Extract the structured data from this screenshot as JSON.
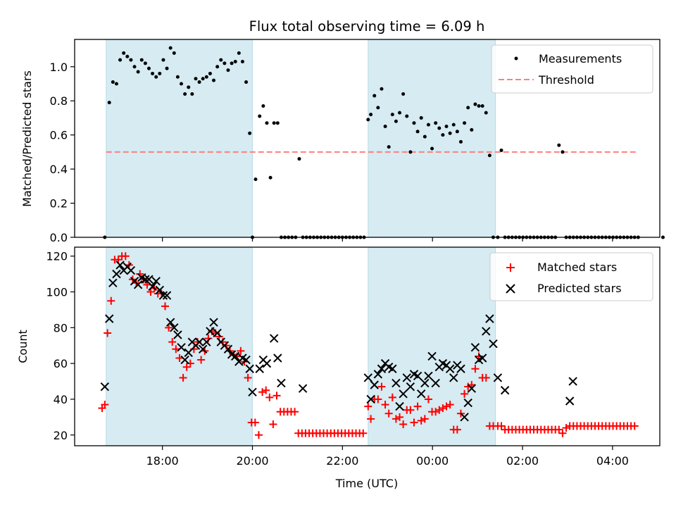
{
  "chart_data": [
    {
      "type": "scatter",
      "title": "Flux total observing time = 6.09 h",
      "xlabel": "",
      "ylabel": "Matched/Predicted stars",
      "xlim": [
        16.05,
        29.05
      ],
      "ylim": [
        0.0,
        1.16
      ],
      "yticks": [
        0.0,
        0.2,
        0.4,
        0.6,
        0.8,
        1.0
      ],
      "ytick_labels": [
        "0.0",
        "0.2",
        "0.4",
        "0.6",
        "0.8",
        "1.0"
      ],
      "grid": false,
      "legend": "top-right",
      "legend_entries": [
        "Measurements",
        "Threshold"
      ],
      "shaded_regions": [
        [
          16.75,
          20.0
        ],
        [
          22.57,
          25.4
        ]
      ],
      "threshold": {
        "name": "Threshold",
        "value": 0.5,
        "x_range": [
          16.75,
          28.55
        ],
        "color": "#ff7f7f"
      },
      "series": [
        {
          "name": "Measurements",
          "marker": "dot",
          "color": "#000000",
          "x": [
            16.72,
            16.82,
            16.9,
            16.98,
            17.06,
            17.14,
            17.22,
            17.3,
            17.38,
            17.46,
            17.54,
            17.62,
            17.7,
            17.78,
            17.86,
            17.94,
            18.02,
            18.1,
            18.18,
            18.26,
            18.34,
            18.42,
            18.5,
            18.58,
            18.66,
            18.74,
            18.82,
            18.9,
            18.98,
            19.06,
            19.14,
            19.22,
            19.3,
            19.38,
            19.46,
            19.54,
            19.62,
            19.7,
            19.78,
            19.86,
            19.94,
            20.0,
            20.07,
            20.16,
            20.24,
            20.32,
            20.4,
            20.48,
            20.56,
            20.64,
            20.72,
            20.8,
            20.88,
            20.96,
            21.04,
            21.12,
            21.2,
            21.28,
            21.36,
            21.44,
            21.52,
            21.6,
            21.68,
            21.76,
            21.84,
            21.92,
            22.0,
            22.08,
            22.16,
            22.24,
            22.32,
            22.4,
            22.48,
            22.57,
            22.63,
            22.71,
            22.79,
            22.87,
            22.95,
            23.03,
            23.11,
            23.19,
            23.27,
            23.35,
            23.43,
            23.51,
            23.59,
            23.67,
            23.75,
            23.83,
            23.91,
            23.99,
            24.07,
            24.15,
            24.23,
            24.31,
            24.39,
            24.47,
            24.55,
            24.63,
            24.71,
            24.79,
            24.87,
            24.95,
            25.03,
            25.11,
            25.19,
            25.27,
            25.35,
            25.45,
            25.53,
            25.61,
            25.69,
            25.77,
            25.85,
            25.93,
            26.01,
            26.09,
            26.17,
            26.25,
            26.33,
            26.41,
            26.49,
            26.57,
            26.65,
            26.73,
            26.81,
            26.89,
            26.97,
            27.05,
            27.13,
            27.21,
            27.29,
            27.37,
            27.45,
            27.53,
            27.61,
            27.69,
            27.77,
            27.85,
            27.93,
            28.01,
            28.09,
            28.17,
            28.25,
            28.33,
            28.41,
            28.49,
            28.57,
            29.12
          ],
          "y": [
            0.0,
            0.79,
            0.91,
            0.9,
            1.04,
            1.08,
            1.06,
            1.04,
            1.0,
            0.97,
            1.04,
            1.02,
            0.99,
            0.96,
            0.94,
            0.96,
            1.04,
            0.99,
            1.11,
            1.08,
            0.94,
            0.9,
            0.84,
            0.88,
            0.84,
            0.93,
            0.91,
            0.93,
            0.94,
            0.96,
            0.92,
            1.0,
            1.04,
            1.02,
            0.98,
            1.02,
            1.03,
            1.08,
            1.03,
            0.91,
            0.61,
            0.0,
            0.34,
            0.71,
            0.77,
            0.67,
            0.35,
            0.67,
            0.67,
            0.0,
            0.0,
            0.0,
            0.0,
            0.0,
            0.46,
            0.0,
            0.0,
            0.0,
            0.0,
            0.0,
            0.0,
            0.0,
            0.0,
            0.0,
            0.0,
            0.0,
            0.0,
            0.0,
            0.0,
            0.0,
            0.0,
            0.0,
            0.0,
            0.69,
            0.72,
            0.83,
            0.76,
            0.87,
            0.65,
            0.53,
            0.72,
            0.68,
            0.73,
            0.84,
            0.71,
            0.5,
            0.67,
            0.62,
            0.7,
            0.59,
            0.66,
            0.52,
            0.67,
            0.64,
            0.6,
            0.65,
            0.61,
            0.66,
            0.62,
            0.56,
            0.67,
            0.76,
            0.63,
            0.78,
            0.77,
            0.77,
            0.73,
            0.48,
            0.0,
            0.0,
            0.51,
            0.0,
            0.0,
            0.0,
            0.0,
            0.0,
            0.0,
            0.0,
            0.0,
            0.0,
            0.0,
            0.0,
            0.0,
            0.0,
            0.0,
            0.0,
            0.54,
            0.5,
            0.0,
            0.0,
            0.0,
            0.0,
            0.0,
            0.0,
            0.0,
            0.0,
            0.0,
            0.0,
            0.0,
            0.0,
            0.0,
            0.0,
            0.0,
            0.0,
            0.0,
            0.0,
            0.0,
            0.0,
            0.0,
            0.0
          ]
        }
      ]
    },
    {
      "type": "scatter",
      "title": "",
      "xlabel": "Time (UTC)",
      "ylabel": "Count",
      "xlim": [
        16.05,
        29.05
      ],
      "ylim": [
        14.0,
        125.0
      ],
      "yticks": [
        20,
        40,
        60,
        80,
        100,
        120
      ],
      "ytick_labels": [
        "20",
        "40",
        "60",
        "80",
        "100",
        "120"
      ],
      "xticks": [
        18,
        20,
        22,
        24,
        26,
        28
      ],
      "xtick_labels": [
        "18:00",
        "20:00",
        "22:00",
        "00:00",
        "02:00",
        "04:00"
      ],
      "grid": false,
      "legend": "top-right",
      "legend_entries": [
        "Matched stars",
        "Predicted stars"
      ],
      "shaded_regions": [
        [
          16.75,
          20.0
        ],
        [
          22.57,
          25.4
        ]
      ],
      "series": [
        {
          "name": "Matched stars",
          "marker": "plus",
          "color": "#ff0000",
          "x": [
            16.66,
            16.72,
            16.78,
            16.86,
            16.94,
            17.02,
            17.1,
            17.18,
            17.26,
            17.34,
            17.42,
            17.5,
            17.58,
            17.66,
            17.74,
            17.82,
            17.9,
            17.98,
            18.06,
            18.14,
            18.22,
            18.3,
            18.38,
            18.46,
            18.54,
            18.62,
            18.7,
            18.78,
            18.86,
            18.94,
            19.02,
            19.1,
            19.18,
            19.26,
            19.34,
            19.42,
            19.5,
            19.58,
            19.66,
            19.74,
            19.82,
            19.9,
            19.98,
            20.06,
            20.14,
            20.22,
            20.3,
            20.38,
            20.46,
            20.54,
            20.62,
            20.7,
            20.78,
            20.86,
            20.94,
            21.02,
            21.1,
            21.18,
            21.26,
            21.34,
            21.42,
            21.5,
            21.58,
            21.66,
            21.74,
            21.82,
            21.9,
            21.98,
            22.06,
            22.14,
            22.22,
            22.3,
            22.38,
            22.46,
            22.57,
            22.63,
            22.71,
            22.79,
            22.87,
            22.95,
            23.03,
            23.11,
            23.19,
            23.27,
            23.35,
            23.43,
            23.51,
            23.59,
            23.67,
            23.75,
            23.83,
            23.91,
            23.99,
            24.07,
            24.15,
            24.23,
            24.31,
            24.39,
            24.47,
            24.55,
            24.63,
            24.71,
            24.79,
            24.87,
            24.95,
            25.03,
            25.11,
            25.19,
            25.27,
            25.35,
            25.45,
            25.53,
            25.61,
            25.69,
            25.77,
            25.85,
            25.93,
            26.01,
            26.09,
            26.17,
            26.25,
            26.33,
            26.41,
            26.49,
            26.57,
            26.65,
            26.73,
            26.81,
            26.89,
            26.97,
            27.05,
            27.13,
            27.21,
            27.29,
            27.37,
            27.45,
            27.53,
            27.61,
            27.69,
            27.77,
            27.85,
            27.93,
            28.01,
            28.09,
            28.17,
            28.25,
            28.33,
            28.41,
            28.49
          ],
          "y": [
            35,
            37,
            77,
            95,
            118,
            118,
            120,
            120,
            115,
            107,
            105,
            110,
            107,
            104,
            100,
            102,
            99,
            99,
            92,
            80,
            72,
            68,
            63,
            52,
            58,
            60,
            68,
            72,
            62,
            67,
            74,
            78,
            77,
            75,
            72,
            70,
            67,
            65,
            64,
            67,
            61,
            52,
            27,
            27,
            20,
            44,
            45,
            41,
            26,
            42,
            33,
            33,
            33,
            33,
            33,
            21,
            21,
            21,
            21,
            21,
            21,
            21,
            21,
            21,
            21,
            21,
            21,
            21,
            21,
            21,
            21,
            21,
            21,
            21,
            36,
            29,
            40,
            40,
            47,
            37,
            32,
            41,
            29,
            30,
            26,
            34,
            34,
            27,
            36,
            28,
            29,
            40,
            33,
            33,
            34,
            35,
            36,
            37,
            23,
            23,
            32,
            43,
            47,
            48,
            57,
            64,
            52,
            52,
            25,
            25,
            25,
            25,
            23,
            23,
            23,
            23,
            23,
            23,
            23,
            23,
            23,
            23,
            23,
            23,
            23,
            23,
            23,
            23,
            21,
            24,
            25,
            25,
            25,
            25,
            25,
            25,
            25,
            25,
            25,
            25,
            25,
            25,
            25,
            25,
            25,
            25,
            25,
            25,
            25
          ]
        },
        {
          "name": "Predicted stars",
          "marker": "x",
          "color": "#000000",
          "x": [
            16.72,
            16.82,
            16.9,
            16.98,
            17.06,
            17.14,
            17.22,
            17.3,
            17.38,
            17.46,
            17.54,
            17.62,
            17.7,
            17.78,
            17.86,
            17.94,
            18.02,
            18.1,
            18.18,
            18.26,
            18.34,
            18.42,
            18.5,
            18.58,
            18.66,
            18.74,
            18.82,
            18.9,
            18.98,
            19.06,
            19.14,
            19.22,
            19.3,
            19.38,
            19.46,
            19.54,
            19.62,
            19.7,
            19.78,
            19.86,
            19.94,
            20.0,
            20.16,
            20.24,
            20.32,
            20.48,
            20.56,
            20.64,
            21.12,
            22.57,
            22.63,
            22.71,
            22.79,
            22.87,
            22.95,
            23.03,
            23.11,
            23.19,
            23.27,
            23.35,
            23.43,
            23.51,
            23.59,
            23.67,
            23.75,
            23.83,
            23.91,
            23.99,
            24.07,
            24.15,
            24.23,
            24.31,
            24.39,
            24.47,
            24.55,
            24.63,
            24.71,
            24.79,
            24.87,
            24.95,
            25.03,
            25.11,
            25.19,
            25.27,
            25.35,
            25.45,
            25.61,
            27.05,
            27.12
          ],
          "y": [
            47,
            85,
            105,
            110,
            115,
            112,
            114,
            112,
            106,
            104,
            108,
            107,
            107,
            103,
            106,
            101,
            98,
            98,
            83,
            80,
            76,
            69,
            62,
            66,
            72,
            70,
            72,
            68,
            72,
            78,
            83,
            77,
            72,
            70,
            68,
            65,
            64,
            61,
            63,
            62,
            57,
            44,
            57,
            62,
            60,
            74,
            63,
            49,
            46,
            52,
            40,
            48,
            54,
            57,
            60,
            58,
            57,
            49,
            36,
            43,
            52,
            47,
            54,
            53,
            43,
            49,
            53,
            64,
            49,
            58,
            60,
            59,
            57,
            52,
            59,
            57,
            30,
            38,
            46,
            69,
            62,
            63,
            78,
            85,
            71,
            52,
            45,
            39,
            50
          ]
        }
      ]
    }
  ]
}
